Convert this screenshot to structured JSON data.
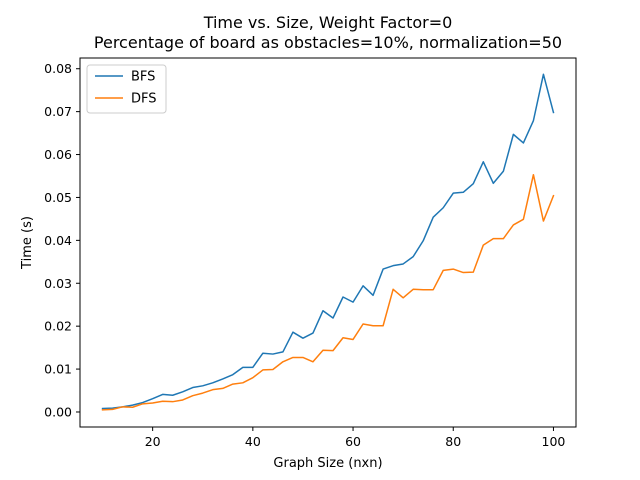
{
  "chart_data": {
    "type": "line",
    "title": "Time vs. Size, Weight Factor=0",
    "subtitle": "Percentage of board as obstacles=10%, normalization=50",
    "xlabel": "Graph Size (nxn)",
    "ylabel": "Time (s)",
    "xlim": [
      5.5,
      104.5
    ],
    "ylim": [
      -0.0035,
      0.0825
    ],
    "xticks": [
      20,
      40,
      60,
      80,
      100
    ],
    "xtick_labels": [
      "20",
      "40",
      "60",
      "80",
      "100"
    ],
    "yticks": [
      0.0,
      0.01,
      0.02,
      0.03,
      0.04,
      0.05,
      0.06,
      0.07,
      0.08
    ],
    "ytick_labels": [
      "0.00",
      "0.01",
      "0.02",
      "0.03",
      "0.04",
      "0.05",
      "0.06",
      "0.07",
      "0.08"
    ],
    "grid": false,
    "legend_position": "upper-left",
    "x": [
      10,
      12,
      14,
      16,
      18,
      20,
      22,
      24,
      26,
      28,
      30,
      32,
      34,
      36,
      38,
      40,
      42,
      44,
      46,
      48,
      50,
      52,
      54,
      56,
      58,
      60,
      62,
      64,
      66,
      68,
      70,
      72,
      74,
      76,
      78,
      80,
      82,
      84,
      86,
      88,
      90,
      92,
      94,
      96,
      98,
      100
    ],
    "series": [
      {
        "name": "BFS",
        "color": "#1f77b4",
        "values": [
          0.0008,
          0.0009,
          0.0012,
          0.0016,
          0.0022,
          0.0031,
          0.0041,
          0.0039,
          0.0047,
          0.0057,
          0.0061,
          0.0068,
          0.0077,
          0.0087,
          0.0104,
          0.0104,
          0.0137,
          0.0135,
          0.014,
          0.0186,
          0.0172,
          0.0184,
          0.0236,
          0.0219,
          0.0268,
          0.0256,
          0.0294,
          0.0272,
          0.0333,
          0.0341,
          0.0345,
          0.0362,
          0.0399,
          0.0454,
          0.0476,
          0.051,
          0.0512,
          0.0532,
          0.0583,
          0.0533,
          0.0561,
          0.0647,
          0.0627,
          0.0679,
          0.0787,
          0.0698
        ]
      },
      {
        "name": "DFS",
        "color": "#ff7f0e",
        "values": [
          0.0005,
          0.0006,
          0.0012,
          0.0011,
          0.0019,
          0.0021,
          0.0025,
          0.0024,
          0.0028,
          0.0038,
          0.0044,
          0.0052,
          0.0055,
          0.0065,
          0.0068,
          0.008,
          0.0098,
          0.0099,
          0.0117,
          0.0127,
          0.0127,
          0.0117,
          0.0144,
          0.0143,
          0.0173,
          0.0169,
          0.0205,
          0.0201,
          0.0201,
          0.0286,
          0.0266,
          0.0286,
          0.0285,
          0.0285,
          0.033,
          0.0333,
          0.0325,
          0.0326,
          0.0389,
          0.0404,
          0.0404,
          0.0436,
          0.0449,
          0.0553,
          0.0445,
          0.0504
        ]
      }
    ]
  }
}
